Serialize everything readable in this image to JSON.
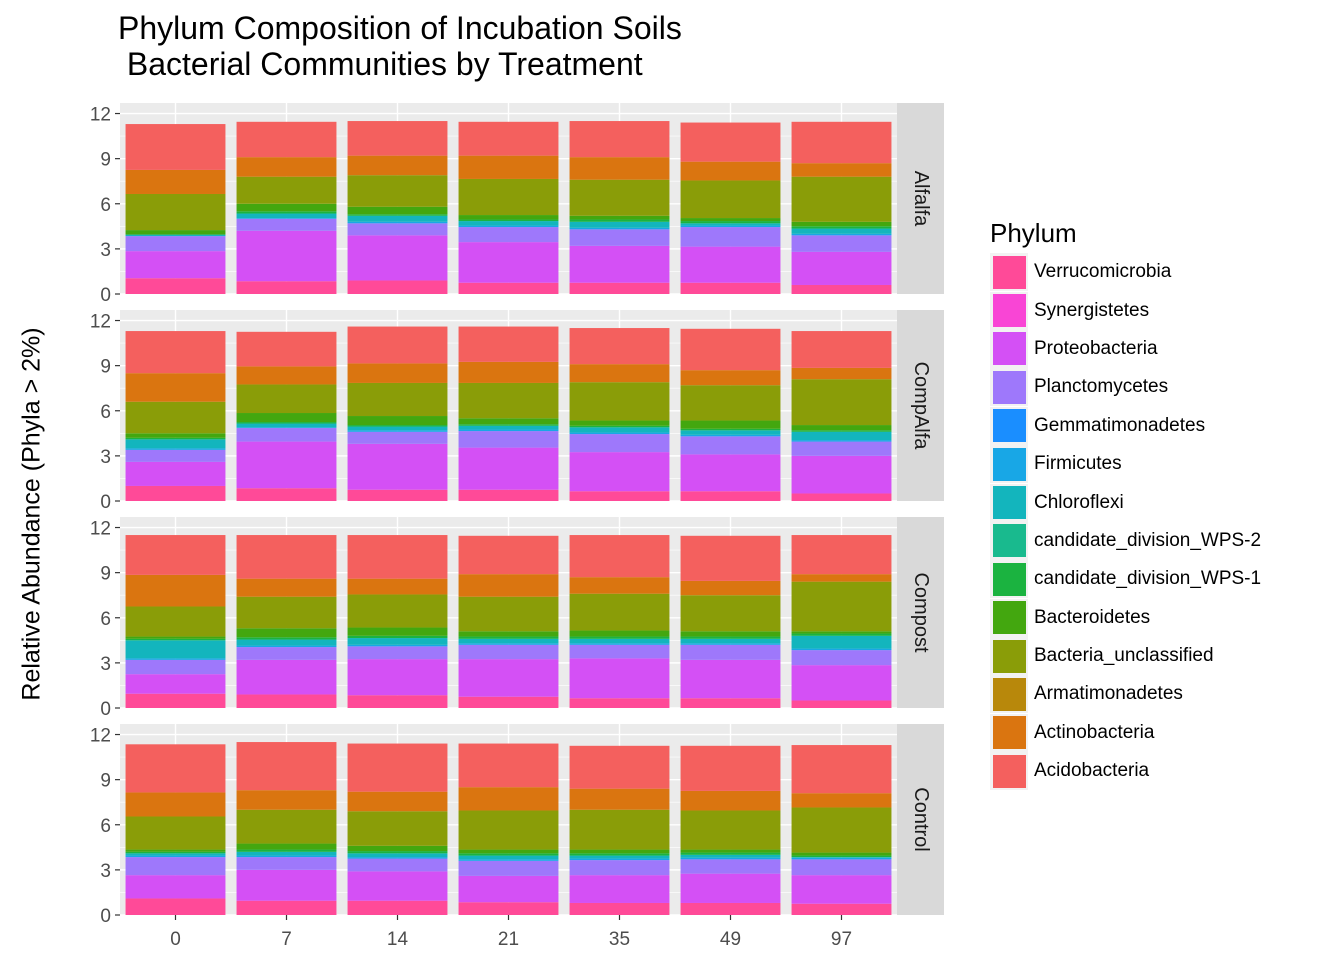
{
  "chart_data": {
    "type": "bar",
    "stacked": true,
    "title": "Phylum Composition of Incubation Soils\n Bacterial Communities by Treatment",
    "ylabel": "Relative Abundance (Phyla > 2%)",
    "xlabel": "",
    "categories": [
      "0",
      "7",
      "14",
      "21",
      "35",
      "49",
      "97"
    ],
    "yticks": [
      "0",
      "3",
      "6",
      "9",
      "12"
    ],
    "ylim": [
      0,
      12.7
    ],
    "legend_title": "Phylum",
    "legend_position": "right",
    "grid": true,
    "phyla": [
      {
        "name": "Verrucomicrobia",
        "color": "#FF4A98"
      },
      {
        "name": "Synergistetes",
        "color": "#F945D5"
      },
      {
        "name": "Proteobacteria",
        "color": "#D450F5"
      },
      {
        "name": "Planctomycetes",
        "color": "#9E78FB"
      },
      {
        "name": "Gemmatimonadetes",
        "color": "#1A8EFF"
      },
      {
        "name": "Firmicutes",
        "color": "#18A7E6"
      },
      {
        "name": "Chloroflexi",
        "color": "#13B5BD"
      },
      {
        "name": "candidate_division_WPS-2",
        "color": "#19BA8E"
      },
      {
        "name": "candidate_division_WPS-1",
        "color": "#1BB340"
      },
      {
        "name": "Bacteroidetes",
        "color": "#43A70F"
      },
      {
        "name": "Bacteria_unclassified",
        "color": "#8A9D08"
      },
      {
        "name": "Armatimonadetes",
        "color": "#B8880B"
      },
      {
        "name": "Actinobacteria",
        "color": "#DA7510"
      },
      {
        "name": "Acidobacteria",
        "color": "#F4605E"
      }
    ],
    "facets": [
      {
        "name": "Alfalfa",
        "values": [
          [
            1.05,
            0,
            1.8,
            1.0,
            0,
            0,
            0.1,
            0,
            0,
            0.3,
            2.4,
            0,
            1.6,
            3.05
          ],
          [
            0.85,
            0,
            3.35,
            0.8,
            0,
            0.05,
            0.3,
            0,
            0.15,
            0.5,
            1.8,
            0,
            1.3,
            2.35
          ],
          [
            0.9,
            0,
            3.0,
            0.8,
            0,
            0.1,
            0.4,
            0,
            0.1,
            0.5,
            2.1,
            0,
            1.3,
            2.3
          ],
          [
            0.75,
            0,
            2.7,
            1.0,
            0,
            0.1,
            0.3,
            0,
            0.1,
            0.3,
            2.4,
            0,
            1.55,
            2.25
          ],
          [
            0.75,
            0,
            2.45,
            1.1,
            0,
            0.1,
            0.4,
            0,
            0.15,
            0.25,
            2.4,
            0,
            1.5,
            2.4
          ],
          [
            0.75,
            0,
            2.4,
            1.3,
            0,
            0.1,
            0.15,
            0,
            0.15,
            0.2,
            2.5,
            0,
            1.25,
            2.6
          ],
          [
            0.6,
            0,
            2.2,
            1.1,
            0,
            0.1,
            0.35,
            0,
            0.15,
            0.3,
            3.0,
            0,
            0.9,
            2.75
          ]
        ]
      },
      {
        "name": "CompAlfa",
        "values": [
          [
            1.0,
            0,
            1.6,
            0.8,
            0,
            0.1,
            0.6,
            0,
            0.1,
            0.3,
            2.1,
            0,
            1.9,
            2.8
          ],
          [
            0.85,
            0,
            3.1,
            0.9,
            0,
            0.05,
            0.25,
            0,
            0.1,
            0.6,
            1.9,
            0,
            1.2,
            2.3
          ],
          [
            0.75,
            0,
            3.05,
            0.8,
            0,
            0.1,
            0.25,
            0,
            0.1,
            0.6,
            2.2,
            0,
            1.3,
            2.45
          ],
          [
            0.75,
            0,
            2.8,
            1.1,
            0,
            0.1,
            0.25,
            0,
            0.1,
            0.4,
            2.35,
            0,
            1.4,
            2.35
          ],
          [
            0.65,
            0,
            2.6,
            1.2,
            0,
            0.1,
            0.35,
            0,
            0.1,
            0.35,
            2.55,
            0,
            1.2,
            2.4
          ],
          [
            0.65,
            0,
            2.45,
            1.2,
            0,
            0.1,
            0.3,
            0,
            0.1,
            0.55,
            2.35,
            0,
            1.0,
            2.75
          ],
          [
            0.5,
            0,
            2.5,
            0.95,
            0,
            0.1,
            0.55,
            0,
            0.1,
            0.35,
            3.05,
            0,
            0.75,
            2.45
          ]
        ]
      },
      {
        "name": "Compost",
        "values": [
          [
            0.95,
            0,
            1.3,
            0.95,
            0,
            0.1,
            1.2,
            0,
            0.1,
            0.15,
            2.0,
            0,
            2.1,
            2.65
          ],
          [
            0.9,
            0,
            2.3,
            0.85,
            0,
            0.1,
            0.4,
            0,
            0.15,
            0.6,
            2.1,
            0,
            1.2,
            2.9
          ],
          [
            0.85,
            0,
            2.4,
            0.85,
            0,
            0.1,
            0.45,
            0,
            0.15,
            0.55,
            2.2,
            0,
            1.05,
            2.9
          ],
          [
            0.75,
            0,
            2.5,
            0.95,
            0,
            0.1,
            0.3,
            0,
            0.15,
            0.35,
            2.3,
            0,
            1.5,
            2.55
          ],
          [
            0.65,
            0,
            2.65,
            0.9,
            0,
            0.1,
            0.3,
            0,
            0.15,
            0.4,
            2.45,
            0,
            1.1,
            2.8
          ],
          [
            0.65,
            0,
            2.55,
            1.0,
            0,
            0.1,
            0.3,
            0,
            0.15,
            0.35,
            2.4,
            0,
            0.95,
            3.0
          ],
          [
            0.5,
            0,
            2.35,
            1.0,
            0,
            0.1,
            0.85,
            0,
            0.15,
            0.15,
            3.3,
            0,
            0.5,
            2.6
          ]
        ]
      },
      {
        "name": "Control",
        "values": [
          [
            1.1,
            0,
            1.55,
            1.2,
            0,
            0.1,
            0.15,
            0,
            0.1,
            0.15,
            2.2,
            0,
            1.6,
            3.2
          ],
          [
            0.95,
            0,
            2.05,
            0.85,
            0,
            0.1,
            0.25,
            0,
            0.15,
            0.4,
            2.25,
            0,
            1.3,
            3.2
          ],
          [
            0.95,
            0,
            1.95,
            0.85,
            0,
            0.1,
            0.25,
            0,
            0.15,
            0.35,
            2.3,
            0,
            1.3,
            3.2
          ],
          [
            0.85,
            0,
            1.75,
            1.0,
            0,
            0.1,
            0.25,
            0,
            0.15,
            0.25,
            2.6,
            0,
            1.55,
            2.9
          ],
          [
            0.8,
            0,
            1.85,
            1.0,
            0,
            0.1,
            0.2,
            0,
            0.15,
            0.25,
            2.65,
            0,
            1.4,
            2.85
          ],
          [
            0.8,
            0,
            1.95,
            0.95,
            0,
            0.1,
            0.2,
            0,
            0.15,
            0.2,
            2.6,
            0,
            1.3,
            3.0
          ],
          [
            0.75,
            0,
            1.9,
            1.05,
            0,
            0.1,
            0.05,
            0,
            0.1,
            0.2,
            3.0,
            0,
            0.95,
            3.2
          ]
        ]
      }
    ]
  }
}
